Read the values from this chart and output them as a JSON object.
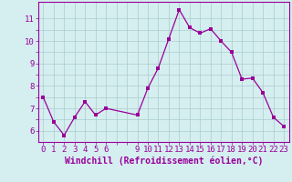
{
  "x": [
    0,
    1,
    2,
    3,
    4,
    5,
    6,
    9,
    10,
    11,
    12,
    13,
    14,
    15,
    16,
    17,
    18,
    19,
    20,
    21,
    22,
    23
  ],
  "y": [
    7.5,
    6.4,
    5.8,
    6.6,
    7.3,
    6.7,
    7.0,
    6.7,
    7.9,
    8.8,
    10.1,
    11.4,
    10.6,
    10.35,
    10.55,
    10.0,
    9.5,
    8.3,
    8.35,
    7.7,
    6.6,
    6.2
  ],
  "line_color": "#990099",
  "marker": "s",
  "marker_size": 2.5,
  "bg_color": "#d5eef0",
  "grid_color": "#aacccc",
  "xlabel": "Windchill (Refroidissement éolien,°C)",
  "xlabel_fontsize": 7,
  "ylim": [
    5.5,
    11.75
  ],
  "xlim": [
    -0.5,
    23.5
  ],
  "line_color_hex": "#990099",
  "tick_fontsize": 6.5,
  "tick_color": "#990099",
  "spine_color": "#990099"
}
